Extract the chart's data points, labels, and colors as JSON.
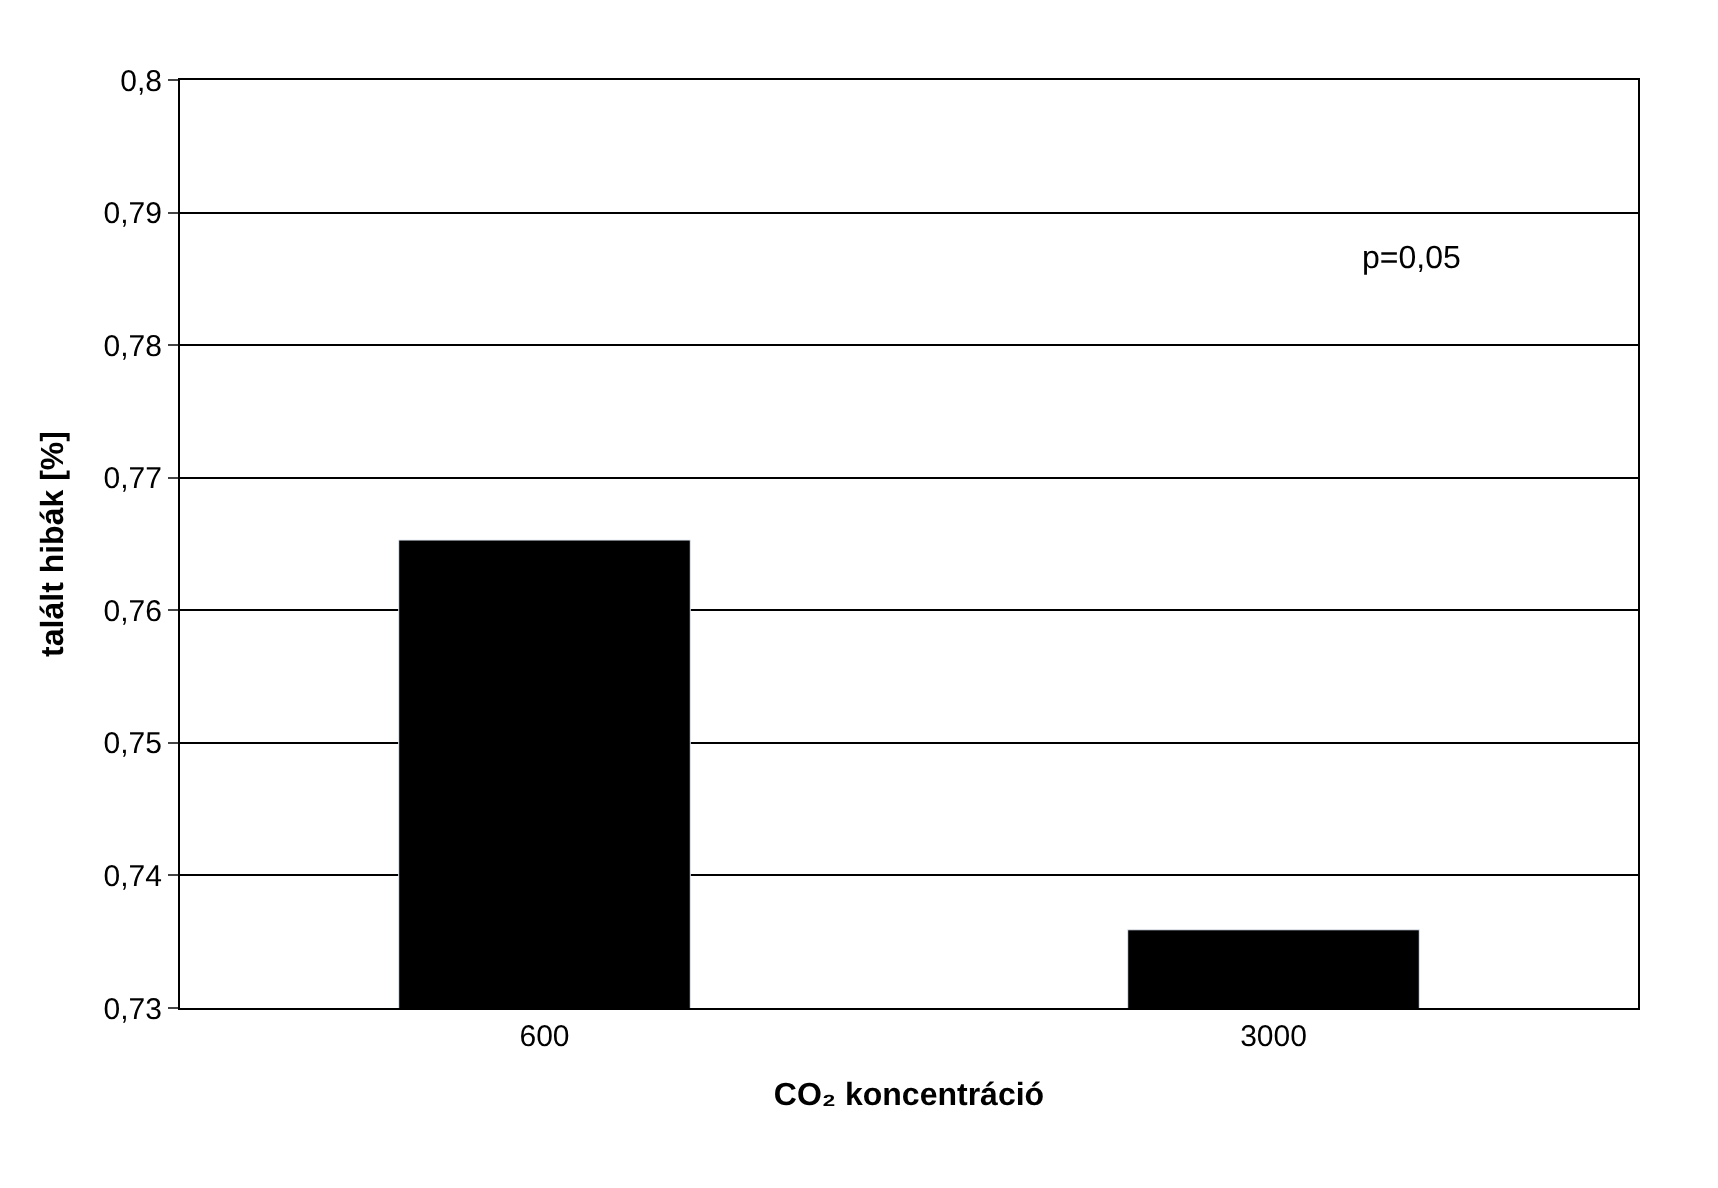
{
  "chart_data": {
    "type": "bar",
    "xlabel": "CO₂ koncentráció",
    "ylabel": "talált hibák [%]",
    "categories": [
      "600",
      "3000"
    ],
    "series": [
      {
        "color": "#000000",
        "values": [
          0.7653,
          0.7359
        ]
      }
    ],
    "ylim": [
      0.73,
      0.8
    ],
    "yticks": [
      {
        "value": 0.73,
        "label": "0,73"
      },
      {
        "value": 0.74,
        "label": "0,74"
      },
      {
        "value": 0.75,
        "label": "0,75"
      },
      {
        "value": 0.76,
        "label": "0,76"
      },
      {
        "value": 0.77,
        "label": "0,77"
      },
      {
        "value": 0.78,
        "label": "0,78"
      },
      {
        "value": 0.79,
        "label": "0,79"
      },
      {
        "value": 0.8,
        "label": "0,8"
      }
    ],
    "grid": "y",
    "annotations": [
      "p=0,05"
    ]
  }
}
